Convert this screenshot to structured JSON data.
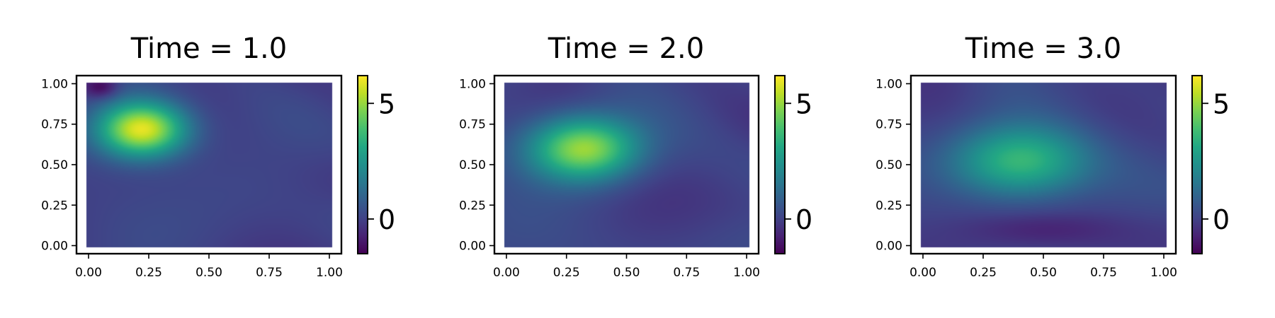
{
  "chart_data": [
    {
      "type": "heatmap",
      "title": "Time = 1.0",
      "xlim": [
        -0.05,
        1.05
      ],
      "ylim": [
        -0.05,
        1.05
      ],
      "x_ticks": [
        "0.00",
        "0.25",
        "0.50",
        "0.75",
        "1.00"
      ],
      "y_ticks": [
        "0.00",
        "0.25",
        "0.50",
        "0.75",
        "1.00"
      ],
      "colorbar": {
        "range": [
          -1.5,
          6.2
        ],
        "ticks": [
          "0",
          "5"
        ],
        "colormap": "viridis"
      },
      "peaks": [
        {
          "x": 0.22,
          "y": 0.72,
          "value": 6.0
        },
        {
          "x": 0.05,
          "y": 0.98,
          "value": -1.5
        }
      ],
      "baseline": 0.0
    },
    {
      "type": "heatmap",
      "title": "Time = 2.0",
      "xlim": [
        -0.05,
        1.05
      ],
      "ylim": [
        -0.05,
        1.05
      ],
      "x_ticks": [
        "0.00",
        "0.25",
        "0.50",
        "0.75",
        "1.00"
      ],
      "y_ticks": [
        "0.00",
        "0.25",
        "0.50",
        "0.75",
        "1.00"
      ],
      "colorbar": {
        "range": [
          -1.5,
          6.2
        ],
        "ticks": [
          "0",
          "5"
        ],
        "colormap": "viridis"
      },
      "peaks": [
        {
          "x": 0.32,
          "y": 0.6,
          "value": 5.2
        }
      ],
      "baseline": 0.0
    },
    {
      "type": "heatmap",
      "title": "Time = 3.0",
      "xlim": [
        -0.05,
        1.05
      ],
      "ylim": [
        -0.05,
        1.05
      ],
      "x_ticks": [
        "0.00",
        "0.25",
        "0.50",
        "0.75",
        "1.00"
      ],
      "y_ticks": [
        "0.00",
        "0.25",
        "0.50",
        "0.75",
        "1.00"
      ],
      "colorbar": {
        "range": [
          -1.5,
          6.2
        ],
        "ticks": [
          "0",
          "5"
        ],
        "colormap": "viridis"
      },
      "peaks": [
        {
          "x": 0.4,
          "y": 0.52,
          "value": 3.8
        },
        {
          "x": 0.5,
          "y": 0.1,
          "value": -0.6
        }
      ],
      "baseline": 0.0
    }
  ]
}
